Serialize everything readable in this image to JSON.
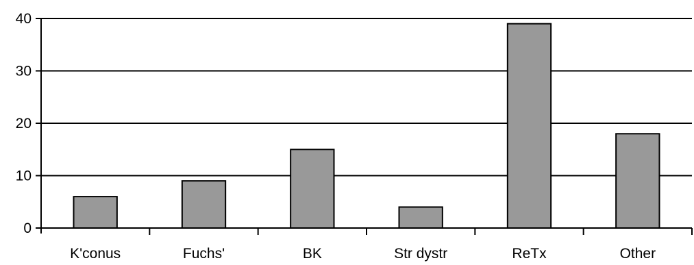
{
  "chart_data": {
    "type": "bar",
    "categories": [
      "K'conus",
      "Fuchs'",
      "BK",
      "Str dystr",
      "ReTx",
      "Other"
    ],
    "values": [
      6,
      9,
      15,
      4,
      39,
      18
    ],
    "title": "",
    "xlabel": "",
    "ylabel": "",
    "ylim": [
      0,
      40
    ],
    "yticks": [
      0,
      10,
      20,
      30,
      40
    ],
    "grid": "horizontal",
    "bar_color": "#999999",
    "bar_edge_color": "#000000"
  }
}
